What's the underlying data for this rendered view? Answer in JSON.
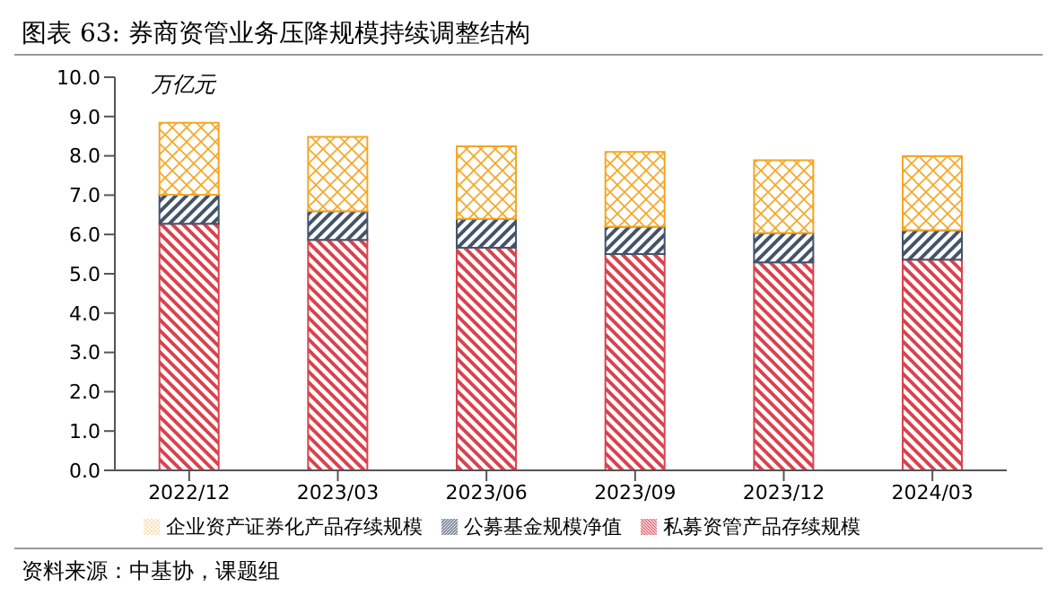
{
  "chart_data": {
    "type": "bar",
    "title": "图表 63: 券商资管业务压降规模持续调整结构",
    "ylabel": "万亿元",
    "stacked": true,
    "categories": [
      "2022/12",
      "2023/03",
      "2023/06",
      "2023/09",
      "2023/12",
      "2024/03"
    ],
    "series": [
      {
        "name": "私募资管产品存续规模",
        "color": "#d9434e",
        "values": [
          6.27,
          5.86,
          5.66,
          5.5,
          5.29,
          5.36
        ]
      },
      {
        "name": "公募基金规模净值",
        "color": "#44546a",
        "values": [
          0.74,
          0.73,
          0.74,
          0.7,
          0.75,
          0.75
        ]
      },
      {
        "name": "企业资产证券化产品存续规模",
        "color": "#f5a623",
        "values": [
          1.83,
          1.89,
          1.84,
          1.9,
          1.85,
          1.88
        ]
      }
    ],
    "ylim": [
      0,
      10
    ],
    "yticks": [
      {
        "value": 0,
        "label": "0.0"
      },
      {
        "value": 1,
        "label": "1.0"
      },
      {
        "value": 2,
        "label": "2.0"
      },
      {
        "value": 3,
        "label": "3.0"
      },
      {
        "value": 4,
        "label": "4.0"
      },
      {
        "value": 5,
        "label": "5.0"
      },
      {
        "value": 6,
        "label": "6.0"
      },
      {
        "value": 7,
        "label": "7.0"
      },
      {
        "value": 8,
        "label": "8.0"
      },
      {
        "value": 9,
        "label": "9.0"
      },
      {
        "value": 10,
        "label": "10.0"
      }
    ],
    "grid": false,
    "legend": "bottom",
    "annotations": [
      "资料来源：中基协，课题组"
    ]
  }
}
